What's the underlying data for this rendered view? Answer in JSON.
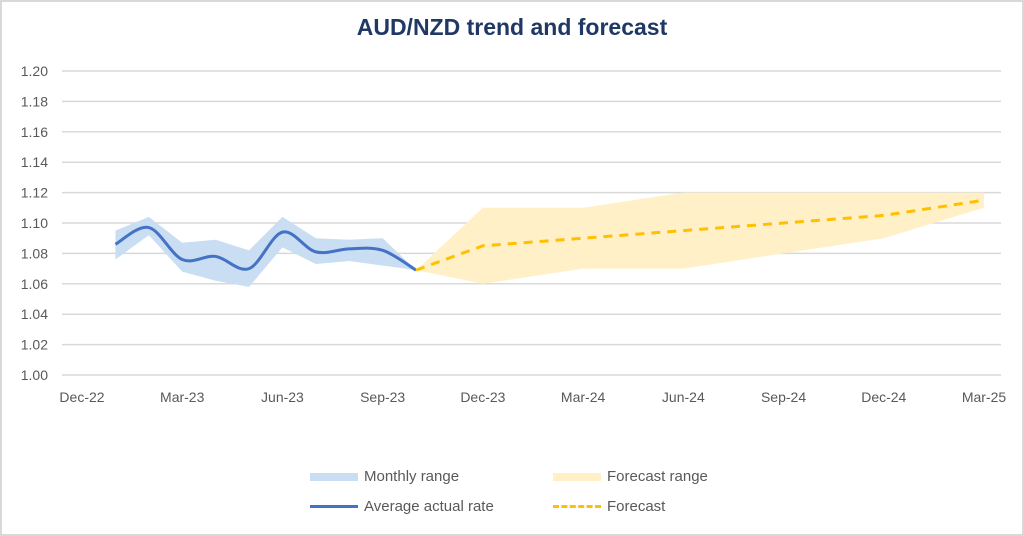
{
  "chart_data": {
    "type": "line",
    "title": "AUD/NZD trend and forecast",
    "xlabel": "",
    "ylabel": "",
    "ylim": [
      1.0,
      1.2
    ],
    "y_ticks": [
      "1.00",
      "1.02",
      "1.04",
      "1.06",
      "1.08",
      "1.10",
      "1.12",
      "1.14",
      "1.16",
      "1.18",
      "1.20"
    ],
    "x_range_months": [
      0,
      27
    ],
    "x_ticks": [
      {
        "label": "Dec-22",
        "month": 0
      },
      {
        "label": "Mar-23",
        "month": 3
      },
      {
        "label": "Jun-23",
        "month": 6
      },
      {
        "label": "Sep-23",
        "month": 9
      },
      {
        "label": "Dec-23",
        "month": 12
      },
      {
        "label": "Mar-24",
        "month": 15
      },
      {
        "label": "Jun-24",
        "month": 18
      },
      {
        "label": "Sep-24",
        "month": 21
      },
      {
        "label": "Dec-24",
        "month": 24
      },
      {
        "label": "Mar-25",
        "month": 27
      }
    ],
    "grid": true,
    "legend_position": "bottom",
    "series": [
      {
        "name": "Monthly range",
        "kind": "band",
        "color": "#c9ddf3",
        "x": [
          1,
          2,
          3,
          4,
          5,
          6,
          7,
          8,
          9,
          10
        ],
        "low": [
          1.076,
          1.092,
          1.068,
          1.062,
          1.058,
          1.084,
          1.073,
          1.075,
          1.072,
          1.069
        ],
        "high": [
          1.095,
          1.104,
          1.087,
          1.089,
          1.082,
          1.104,
          1.09,
          1.089,
          1.09,
          1.069
        ]
      },
      {
        "name": "Forecast range",
        "kind": "band",
        "color": "#fff0c8",
        "x": [
          10,
          12,
          15,
          18,
          21,
          24,
          27
        ],
        "low": [
          1.069,
          1.06,
          1.07,
          1.07,
          1.08,
          1.09,
          1.11
        ],
        "high": [
          1.069,
          1.11,
          1.11,
          1.12,
          1.12,
          1.12,
          1.12
        ]
      },
      {
        "name": "Average actual rate",
        "kind": "line",
        "color": "#4472c4",
        "x": [
          1,
          2,
          3,
          4,
          5,
          6,
          7,
          8,
          9,
          10
        ],
        "values": [
          1.086,
          1.097,
          1.076,
          1.078,
          1.07,
          1.094,
          1.081,
          1.083,
          1.082,
          1.069
        ]
      },
      {
        "name": "Forecast",
        "kind": "dashed",
        "color": "#ffc000",
        "x": [
          10,
          12,
          15,
          18,
          21,
          24,
          27
        ],
        "values": [
          1.069,
          1.085,
          1.09,
          1.095,
          1.1,
          1.105,
          1.115
        ]
      }
    ]
  },
  "colors": {
    "title": "#1f3864",
    "grid": "#d9d9d9",
    "tick_text": "#595959"
  }
}
